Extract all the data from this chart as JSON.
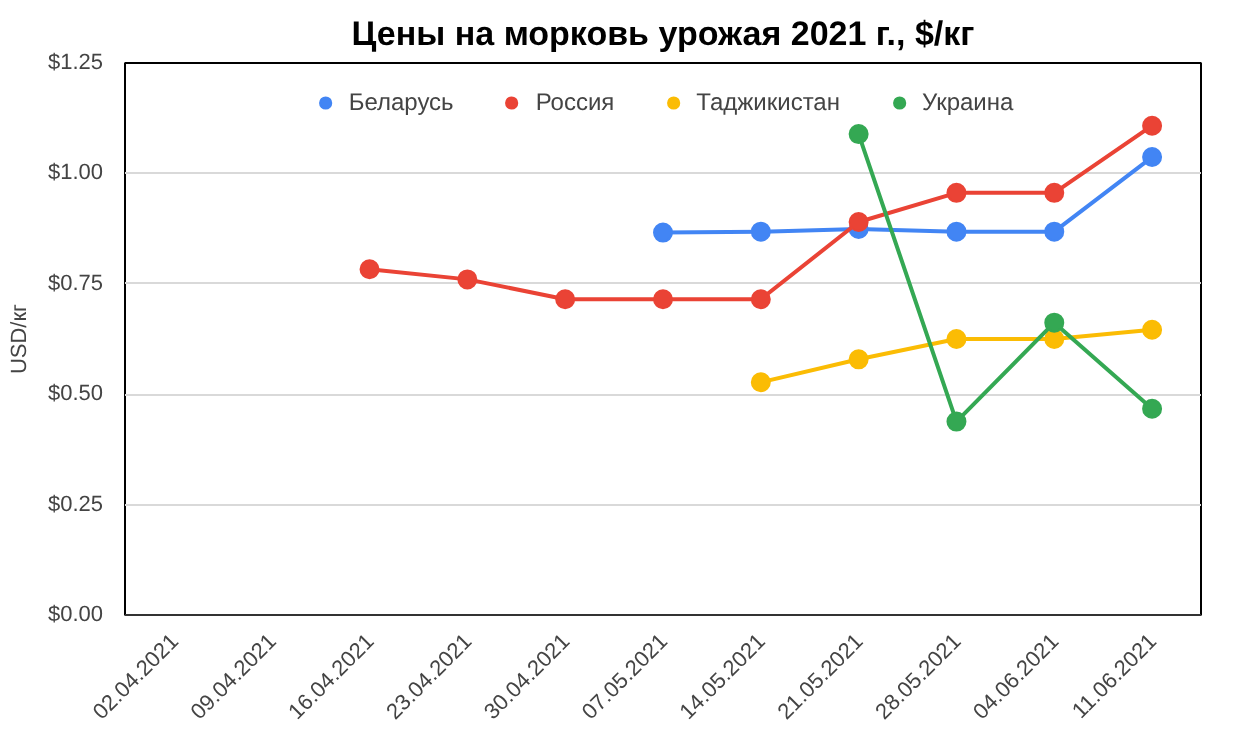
{
  "chart_data": {
    "type": "line",
    "title": "Цены на морковь урожая 2021 г., $/кг",
    "ylabel": "USD/кг",
    "categories": [
      "02.04.2021",
      "09.04.2021",
      "16.04.2021",
      "23.04.2021",
      "30.04.2021",
      "07.05.2021",
      "14.05.2021",
      "21.05.2021",
      "28.05.2021",
      "04.06.2021",
      "11.06.2021"
    ],
    "series": [
      {
        "name": "Беларусь",
        "color": "#4285f4",
        "values": [
          null,
          null,
          null,
          null,
          null,
          0.866,
          0.868,
          0.874,
          0.868,
          0.868,
          1.037
        ]
      },
      {
        "name": "Россия",
        "color": "#ea4335",
        "values": [
          null,
          null,
          0.783,
          0.76,
          0.715,
          0.715,
          0.715,
          0.89,
          0.956,
          0.956,
          1.108
        ]
      },
      {
        "name": "Таджикистан",
        "color": "#fbbc04",
        "values": [
          null,
          null,
          null,
          null,
          null,
          null,
          0.527,
          0.579,
          0.625,
          0.625,
          0.646
        ]
      },
      {
        "name": "Украина",
        "color": "#34a853",
        "values": [
          null,
          null,
          null,
          null,
          null,
          null,
          null,
          1.089,
          0.438,
          0.662,
          0.467
        ]
      }
    ],
    "ylim": [
      0,
      1.25
    ],
    "yticks": [
      {
        "value": 0,
        "label": "$0.00"
      },
      {
        "value": 0.25,
        "label": "$0.25"
      },
      {
        "value": 0.5,
        "label": "$0.50"
      },
      {
        "value": 0.75,
        "label": "$0.75"
      },
      {
        "value": 1.0,
        "label": "$1.00"
      },
      {
        "value": 1.25,
        "label": "$1.25"
      }
    ],
    "grid": "y",
    "legend": "top",
    "marker": "circle",
    "line_style": "solid"
  }
}
